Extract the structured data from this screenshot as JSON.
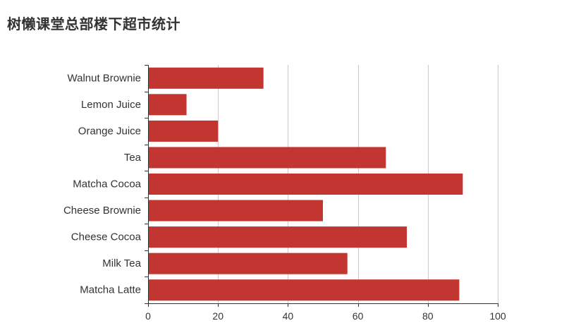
{
  "chart_data": {
    "type": "bar",
    "orientation": "horizontal",
    "title": "树懒课堂总部楼下超市统计",
    "categories": [
      "Walnut Brownie",
      "Lemon Juice",
      "Orange Juice",
      "Tea",
      "Matcha Cocoa",
      "Cheese Brownie",
      "Cheese Cocoa",
      "Milk Tea",
      "Matcha Latte"
    ],
    "series": [
      {
        "values": [
          33,
          11,
          20,
          68,
          90,
          50,
          74,
          57,
          89
        ]
      }
    ],
    "xlim": [
      0,
      100
    ],
    "xticks": [
      0,
      20,
      40,
      60,
      80,
      100
    ],
    "grid": true,
    "legend": "none",
    "bar_color": "#c23531",
    "grid_color": "#cccccc",
    "axis_color": "#333333"
  }
}
